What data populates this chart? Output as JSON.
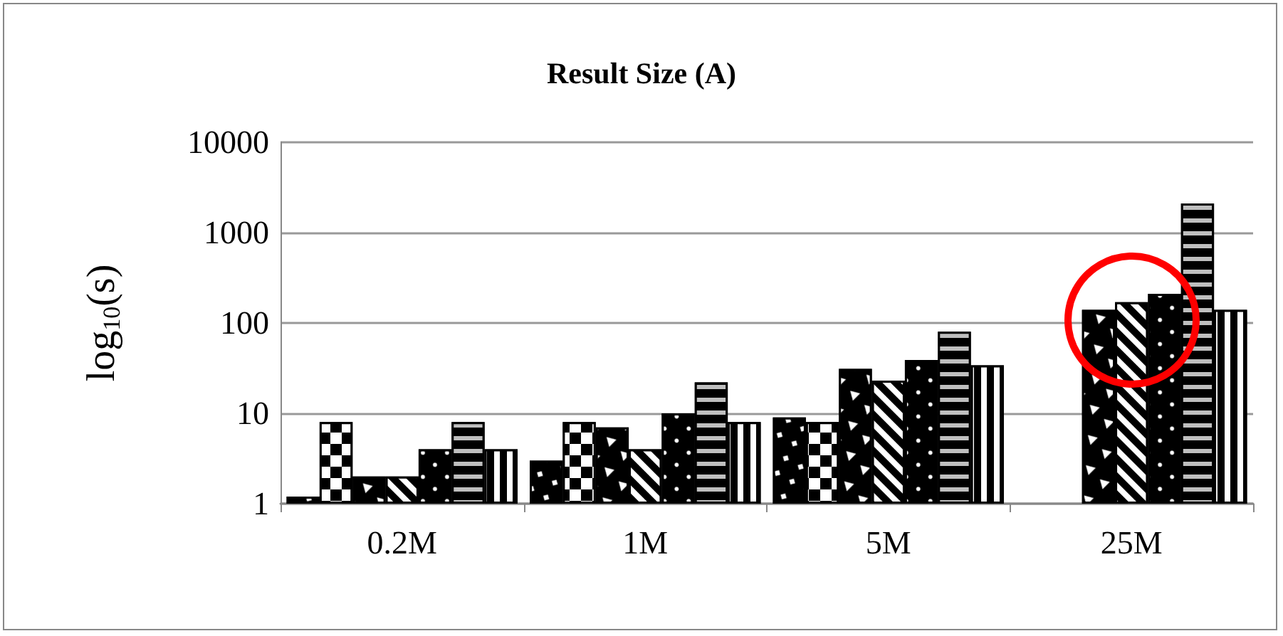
{
  "chart_data": {
    "type": "bar",
    "title": "Result Size (A)",
    "ylabel": "log$_{10}$(s)",
    "categories": [
      "0.2M",
      "1M",
      "5M",
      "25M"
    ],
    "series": [
      {
        "color": "#000000",
        "values": [
          1.2,
          3,
          9,
          null
        ]
      },
      {
        "color": "#000000",
        "values": [
          8,
          8,
          8,
          null
        ]
      },
      {
        "color": "#000000",
        "values": [
          2,
          7,
          31,
          140
        ]
      },
      {
        "color": "#000000",
        "values": [
          2,
          4,
          23,
          170
        ]
      },
      {
        "color": "#000000",
        "values": [
          4,
          10,
          39,
          210
        ]
      },
      {
        "color": "#000000",
        "values": [
          8,
          22,
          80,
          2100
        ]
      },
      {
        "color": "#000000",
        "values": [
          4,
          8,
          34,
          140
        ]
      }
    ],
    "log": "y",
    "ylim": [
      1,
      10000
    ],
    "yticks": [
      1,
      10,
      100,
      1000,
      10000
    ],
    "grid": "y"
  }
}
